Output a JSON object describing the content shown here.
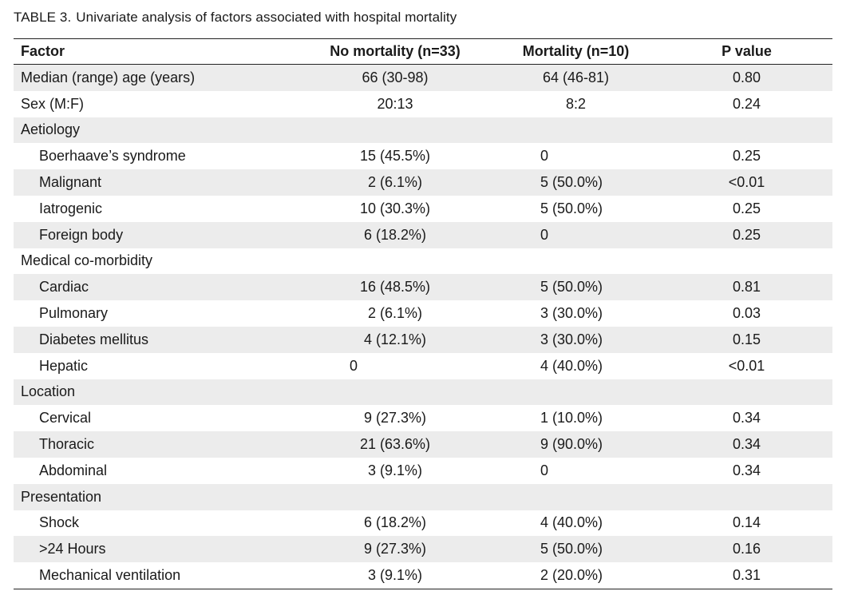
{
  "caption": {
    "label": "TABLE 3.",
    "text": "Univariate analysis of factors associated with hospital mortality"
  },
  "header": {
    "factor": "Factor",
    "no_mortality": "No mortality (n=33)",
    "mortality": "Mortality (n=10)",
    "p_value": "P value"
  },
  "rows": [
    {
      "factor": "Median (range) age (years)",
      "no_mortality": "66 (30-98)",
      "mortality": "64 (46-81)",
      "p_value": "0.80"
    },
    {
      "factor": "Sex (M:F)",
      "no_mortality": "20:13",
      "mortality": "8:2",
      "p_value": "0.24"
    },
    {
      "factor": "Aetiology",
      "no_mortality": "",
      "mortality": "",
      "p_value": ""
    },
    {
      "factor": "Boerhaave’s syndrome",
      "no_mortality": "15 (45.5%)",
      "mortality": "0",
      "p_value": "0.25"
    },
    {
      "factor": "Malignant",
      "no_mortality": "2 (6.1%)",
      "mortality": "5 (50.0%)",
      "p_value": "<0.01"
    },
    {
      "factor": "Iatrogenic",
      "no_mortality": "10 (30.3%)",
      "mortality": "5 (50.0%)",
      "p_value": "0.25"
    },
    {
      "factor": "Foreign body",
      "no_mortality": "6 (18.2%)",
      "mortality": "0",
      "p_value": "0.25"
    },
    {
      "factor": "Medical co-morbidity",
      "no_mortality": "",
      "mortality": "",
      "p_value": ""
    },
    {
      "factor": "Cardiac",
      "no_mortality": "16 (48.5%)",
      "mortality": "5 (50.0%)",
      "p_value": "0.81"
    },
    {
      "factor": "Pulmonary",
      "no_mortality": "2 (6.1%)",
      "mortality": "3 (30.0%)",
      "p_value": "0.03"
    },
    {
      "factor": "Diabetes mellitus",
      "no_mortality": "4 (12.1%)",
      "mortality": "3 (30.0%)",
      "p_value": "0.15"
    },
    {
      "factor": "Hepatic",
      "no_mortality": "0",
      "mortality": "4 (40.0%)",
      "p_value": "<0.01"
    },
    {
      "factor": "Location",
      "no_mortality": "",
      "mortality": "",
      "p_value": ""
    },
    {
      "factor": "Cervical",
      "no_mortality": "9 (27.3%)",
      "mortality": "1 (10.0%)",
      "p_value": "0.34"
    },
    {
      "factor": "Thoracic",
      "no_mortality": "21 (63.6%)",
      "mortality": "9 (90.0%)",
      "p_value": "0.34"
    },
    {
      "factor": "Abdominal",
      "no_mortality": "3 (9.1%)",
      "mortality": "0",
      "p_value": "0.34"
    },
    {
      "factor": "Presentation",
      "no_mortality": "",
      "mortality": "",
      "p_value": ""
    },
    {
      "factor": "Shock",
      "no_mortality": "6 (18.2%)",
      "mortality": "4 (40.0%)",
      "p_value": "0.14"
    },
    {
      "factor": ">24 Hours",
      "no_mortality": "9 (27.3%)",
      "mortality": "5 (50.0%)",
      "p_value": "0.16"
    },
    {
      "factor": "Mechanical ventilation",
      "no_mortality": "3 (9.1%)",
      "mortality": "2 (20.0%)",
      "p_value": "0.31"
    }
  ]
}
